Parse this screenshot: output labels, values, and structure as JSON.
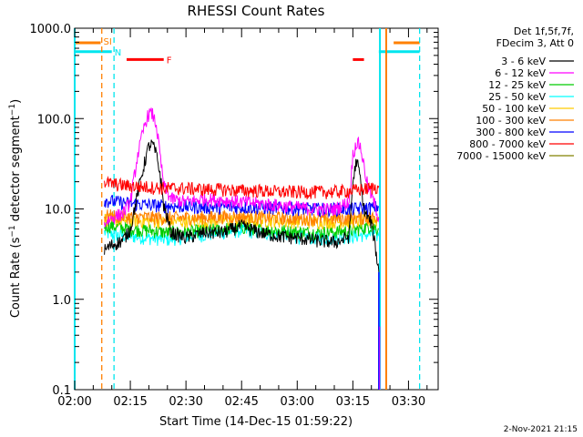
{
  "chart_data": {
    "type": "line",
    "title": "RHESSI Count Rates",
    "xlabel": "Start Time (14-Dec-15 01:59:22)",
    "ylabel": "Count Rate (s⁻¹ detector segment⁻¹)",
    "ylabel_parts": {
      "base": "Count Rate (s",
      "sup1": "−1",
      "mid": " detector segment",
      "sup2": "−1",
      "end": ")"
    },
    "x_unit": "minutes after 02:00 UT",
    "xlim": [
      0,
      98
    ],
    "ylim": [
      0.1,
      1000
    ],
    "yscale": "log",
    "x_ticks": [
      {
        "v": 0,
        "label": "02:00"
      },
      {
        "v": 15,
        "label": "02:15"
      },
      {
        "v": 30,
        "label": "02:30"
      },
      {
        "v": 45,
        "label": "02:45"
      },
      {
        "v": 60,
        "label": "03:00"
      },
      {
        "v": 75,
        "label": "03:15"
      },
      {
        "v": 90,
        "label": "03:30"
      }
    ],
    "y_ticks": [
      {
        "v": 0.1,
        "label": "0.1"
      },
      {
        "v": 1,
        "label": "1.0"
      },
      {
        "v": 10,
        "label": "10.0"
      },
      {
        "v": 100,
        "label": "100.0"
      },
      {
        "v": 1000,
        "label": "1000.0"
      }
    ],
    "legend_header": [
      "Det 1f,5f,7f,",
      "FDecim 3, Att 0"
    ],
    "legend_position": "right, outside plot",
    "series": [
      {
        "name": "3 - 6 keV",
        "color": "#000000",
        "x": [
          8,
          10,
          13,
          15,
          17,
          19,
          20,
          21,
          22,
          23,
          24,
          26,
          30,
          35,
          40,
          45,
          50,
          55,
          60,
          65,
          70,
          72,
          74,
          75,
          76,
          77,
          78,
          79,
          80,
          81,
          82
        ],
        "y": [
          3.5,
          4.0,
          4.5,
          6.0,
          15.0,
          35.0,
          50.0,
          52.0,
          40.0,
          25.0,
          11.0,
          5.5,
          4.8,
          5.5,
          5.5,
          6.5,
          5.5,
          5.0,
          4.8,
          4.5,
          4.3,
          4.5,
          5.0,
          20.0,
          35.0,
          22.0,
          10.0,
          8.0,
          7.0,
          4.0,
          2.0
        ]
      },
      {
        "name": "6 - 12 keV",
        "color": "#ff00ff",
        "x": [
          8,
          10,
          13,
          15,
          17,
          19,
          20,
          21,
          22,
          23,
          24,
          26,
          30,
          35,
          40,
          45,
          50,
          55,
          60,
          65,
          70,
          74,
          75,
          76,
          77,
          78,
          79,
          80,
          81,
          82
        ],
        "y": [
          7.0,
          8.0,
          9.0,
          12.0,
          40.0,
          90.0,
          115.0,
          112.0,
          85.0,
          40.0,
          18.0,
          13.0,
          12.0,
          13.0,
          12.5,
          12.0,
          11.5,
          11.0,
          10.5,
          10.0,
          10.0,
          12.0,
          40.0,
          55.0,
          50.0,
          30.0,
          18.0,
          14.0,
          11.0,
          8.0
        ]
      },
      {
        "name": "12 - 25 keV",
        "color": "#00cc00",
        "x": [
          8,
          10,
          15,
          20,
          25,
          30,
          35,
          40,
          45,
          50,
          55,
          60,
          65,
          70,
          75,
          80,
          82
        ],
        "y": [
          6.5,
          6.5,
          6.0,
          5.8,
          5.5,
          5.6,
          5.8,
          6.0,
          6.3,
          6.0,
          5.8,
          5.6,
          5.5,
          5.6,
          5.8,
          6.5,
          6.0
        ]
      },
      {
        "name": "25 - 50 keV",
        "color": "#00ffff",
        "x": [
          8,
          10,
          15,
          20,
          25,
          30,
          35,
          40,
          45,
          50,
          55,
          60,
          65,
          70,
          75,
          80,
          82
        ],
        "y": [
          5.5,
          5.2,
          5.0,
          4.8,
          4.6,
          4.9,
          5.2,
          5.5,
          5.8,
          5.5,
          5.2,
          5.0,
          4.8,
          4.8,
          5.0,
          5.3,
          5.0
        ]
      },
      {
        "name": "50 - 100 keV",
        "color": "#ffcc00",
        "x": [
          8,
          15,
          25,
          35,
          45,
          55,
          65,
          75,
          82
        ],
        "y": [
          7.8,
          7.5,
          7.3,
          7.4,
          7.6,
          7.4,
          7.2,
          7.3,
          7.5
        ]
      },
      {
        "name": "100 - 300 keV",
        "color": "#ff8000",
        "x": [
          8,
          15,
          25,
          35,
          45,
          55,
          65,
          75,
          82
        ],
        "y": [
          8.5,
          8.2,
          8.0,
          8.1,
          8.3,
          8.0,
          7.8,
          7.9,
          8.2
        ]
      },
      {
        "name": "300 - 800 keV",
        "color": "#0000ff",
        "x": [
          8,
          15,
          25,
          35,
          45,
          55,
          65,
          75,
          82
        ],
        "y": [
          12.5,
          11.5,
          10.8,
          10.5,
          10.5,
          10.3,
          10.0,
          10.0,
          10.5
        ]
      },
      {
        "name": "800 - 7000 keV",
        "color": "#ff0000",
        "x": [
          8,
          10,
          15,
          20,
          25,
          30,
          35,
          40,
          45,
          50,
          55,
          60,
          65,
          70,
          75,
          80,
          82
        ],
        "y": [
          20.0,
          19.0,
          18.0,
          17.5,
          17.0,
          17.0,
          16.5,
          16.5,
          16.0,
          16.0,
          15.5,
          15.5,
          15.5,
          15.5,
          16.0,
          17.0,
          18.0
        ]
      },
      {
        "name": "7000 - 15000 keV",
        "color": "#808000",
        "x": [],
        "y": []
      }
    ],
    "attenuator_bars": [
      {
        "label": "SI",
        "color": "#ff8000",
        "segments": [
          [
            0,
            7
          ],
          [
            86,
            93
          ]
        ],
        "level": 690
      },
      {
        "label": "N",
        "color": "#00e5ee",
        "segments": [
          [
            0,
            10
          ],
          [
            82,
            93
          ]
        ],
        "level": 550
      },
      {
        "label": "F",
        "color": "#ff0000",
        "segments": [
          [
            14,
            24
          ],
          [
            75,
            78
          ]
        ],
        "level": 450
      }
    ],
    "vertical_markers": [
      {
        "x": 0.0,
        "color": "#00e5ee",
        "style": "solid"
      },
      {
        "x": 7.3,
        "color": "#ff8000",
        "style": "dashed"
      },
      {
        "x": 10.6,
        "color": "#00e5ee",
        "style": "dashed"
      },
      {
        "x": 82.3,
        "color": "#00e5ee",
        "style": "solid"
      },
      {
        "x": 84.0,
        "color": "#ff8000",
        "style": "solid"
      },
      {
        "x": 93.0,
        "color": "#00e5ee",
        "style": "dashed"
      }
    ],
    "grid": false
  },
  "footer_date": "2-Nov-2021 21:15"
}
